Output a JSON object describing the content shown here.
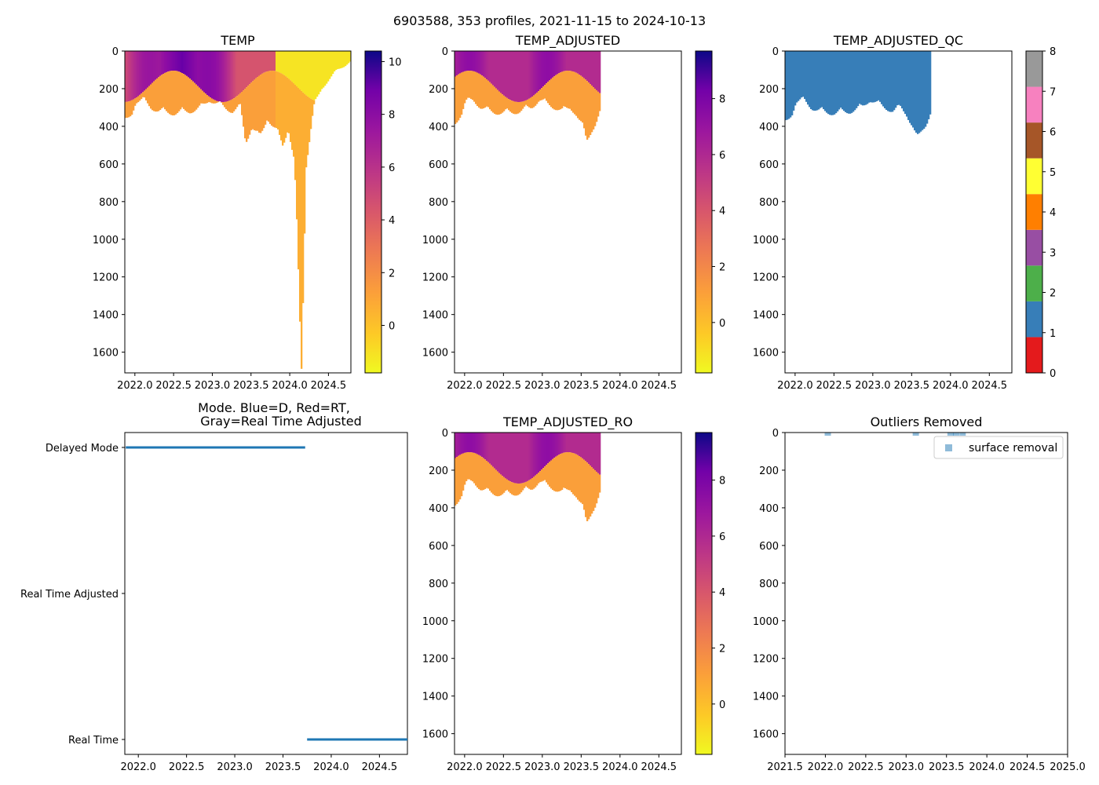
{
  "figure": {
    "suptitle": "6903588, 353 profiles, 2021-11-15 to 2024-10-13"
  },
  "chart_data": [
    {
      "id": "temp",
      "type": "heatmap",
      "title": "TEMP",
      "xlim": [
        2021.87,
        2024.79
      ],
      "ylim": [
        1710,
        0
      ],
      "y_inverted": true,
      "xticks": [
        "2022.0",
        "2022.5",
        "2023.0",
        "2023.5",
        "2024.0",
        "2024.5"
      ],
      "yticks": [
        "0",
        "200",
        "400",
        "600",
        "800",
        "1000",
        "1200",
        "1400",
        "1600"
      ],
      "colormap": "plasma_r",
      "colorbar": {
        "ticks": [
          "0",
          "2",
          "4",
          "6",
          "8",
          "10"
        ],
        "range": [
          -1.8,
          10.4
        ]
      },
      "profile_depth_max": [
        [
          2021.87,
          380
        ],
        [
          2021.95,
          330
        ],
        [
          2022.0,
          270
        ],
        [
          2022.1,
          260
        ],
        [
          2022.2,
          300
        ],
        [
          2022.3,
          320
        ],
        [
          2022.5,
          330
        ],
        [
          2022.7,
          320
        ],
        [
          2022.85,
          300
        ],
        [
          2022.95,
          260
        ],
        [
          2023.1,
          290
        ],
        [
          2023.25,
          320
        ],
        [
          2023.35,
          300
        ],
        [
          2023.42,
          480
        ],
        [
          2023.5,
          400
        ],
        [
          2023.6,
          470
        ],
        [
          2023.7,
          350
        ],
        [
          2023.8,
          420
        ],
        [
          2023.9,
          500
        ],
        [
          2023.97,
          400
        ],
        [
          2024.05,
          600
        ],
        [
          2024.14,
          1700
        ],
        [
          2024.2,
          600
        ],
        [
          2024.3,
          300
        ],
        [
          2024.4,
          200
        ],
        [
          2024.5,
          150
        ],
        [
          2024.6,
          100
        ],
        [
          2024.7,
          80
        ],
        [
          2024.79,
          50
        ]
      ],
      "colder_maximum_near": [
        2022.6,
        0
      ]
    },
    {
      "id": "temp_adjusted",
      "type": "heatmap",
      "title": "TEMP_ADJUSTED",
      "xlim": [
        2021.87,
        2024.79
      ],
      "ylim": [
        1710,
        0
      ],
      "y_inverted": true,
      "xticks": [
        "2022.0",
        "2022.5",
        "2023.0",
        "2023.5",
        "2024.0",
        "2024.5"
      ],
      "yticks": [
        "0",
        "200",
        "400",
        "600",
        "800",
        "1000",
        "1200",
        "1400",
        "1600"
      ],
      "colormap": "plasma_r",
      "colorbar": {
        "ticks": [
          "0",
          "2",
          "4",
          "6",
          "8"
        ],
        "range": [
          -1.8,
          9.7
        ]
      },
      "data_end_x": 2023.73,
      "profile_depth_max": [
        [
          2021.87,
          380
        ],
        [
          2021.95,
          330
        ],
        [
          2022.0,
          270
        ],
        [
          2022.1,
          260
        ],
        [
          2022.2,
          300
        ],
        [
          2022.3,
          320
        ],
        [
          2022.5,
          330
        ],
        [
          2022.7,
          320
        ],
        [
          2022.85,
          300
        ],
        [
          2022.95,
          260
        ],
        [
          2023.1,
          290
        ],
        [
          2023.25,
          320
        ],
        [
          2023.35,
          300
        ],
        [
          2023.42,
          330
        ],
        [
          2023.5,
          400
        ],
        [
          2023.56,
          480
        ],
        [
          2023.62,
          420
        ],
        [
          2023.68,
          380
        ],
        [
          2023.73,
          330
        ]
      ]
    },
    {
      "id": "temp_adjusted_qc",
      "type": "heatmap",
      "title": "TEMP_ADJUSTED_QC",
      "xlim": [
        2021.87,
        2024.79
      ],
      "ylim": [
        1710,
        0
      ],
      "y_inverted": true,
      "xticks": [
        "2022.0",
        "2022.5",
        "2023.0",
        "2023.5",
        "2024.0",
        "2024.5"
      ],
      "yticks": [
        "0",
        "200",
        "400",
        "600",
        "800",
        "1000",
        "1200",
        "1400",
        "1600"
      ],
      "flag_value": 1,
      "flag_color": "#377eb8",
      "data_end_x": 2023.73,
      "colorbar": {
        "ticks": [
          "0",
          "1",
          "2",
          "3",
          "4",
          "5",
          "6",
          "7",
          "8"
        ],
        "colors": [
          "#e41a1c",
          "#377eb8",
          "#4daf4a",
          "#984ea3",
          "#ff7f00",
          "#ffff33",
          "#a65628",
          "#f781bf",
          "#999999"
        ]
      }
    },
    {
      "id": "mode",
      "type": "line",
      "title_lines": [
        "Mode. Blue=D, Red=RT,",
        "Gray=Real Time Adjusted"
      ],
      "xlim": [
        2021.86,
        2024.79
      ],
      "xticks": [
        "2022.0",
        "2022.5",
        "2023.0",
        "2023.5",
        "2024.0",
        "2024.5"
      ],
      "categories": [
        "Delayed Mode",
        "Real Time Adjusted",
        "Real Time"
      ],
      "series": [
        {
          "category": "Delayed Mode",
          "x": [
            2021.87,
            2023.73
          ],
          "color": "#1f77b4"
        },
        {
          "category": "Real Time",
          "x": [
            2023.75,
            2024.79
          ],
          "color": "#1f77b4"
        }
      ]
    },
    {
      "id": "temp_adjusted_ro",
      "type": "heatmap",
      "title": "TEMP_ADJUSTED_RO",
      "xlim": [
        2021.87,
        2024.79
      ],
      "ylim": [
        1710,
        0
      ],
      "y_inverted": true,
      "xticks": [
        "2022.0",
        "2022.5",
        "2023.0",
        "2023.5",
        "2024.0",
        "2024.5"
      ],
      "yticks": [
        "0",
        "200",
        "400",
        "600",
        "800",
        "1000",
        "1200",
        "1400",
        "1600"
      ],
      "colormap": "plasma_r",
      "colorbar": {
        "ticks": [
          "0",
          "2",
          "4",
          "6",
          "8"
        ],
        "range": [
          -1.8,
          9.7
        ]
      },
      "data_end_x": 2023.73
    },
    {
      "id": "outliers",
      "type": "scatter",
      "title": "Outliers Removed",
      "xlim": [
        2021.5,
        2025.0
      ],
      "ylim": [
        1710,
        0
      ],
      "y_inverted": true,
      "xticks": [
        "2021.5",
        "2022.0",
        "2022.5",
        "2023.0",
        "2023.5",
        "2024.0",
        "2024.5",
        "2025.0"
      ],
      "yticks": [
        "0",
        "200",
        "400",
        "600",
        "800",
        "1000",
        "1200",
        "1400",
        "1600"
      ],
      "legend_placement": "top-right",
      "series": [
        {
          "name": "surface removal",
          "color": "#1f77b4",
          "x": [
            2022.03,
            2023.12,
            2023.55,
            2023.62,
            2023.7
          ],
          "y": [
            0,
            0,
            0,
            0,
            0
          ]
        }
      ]
    }
  ]
}
